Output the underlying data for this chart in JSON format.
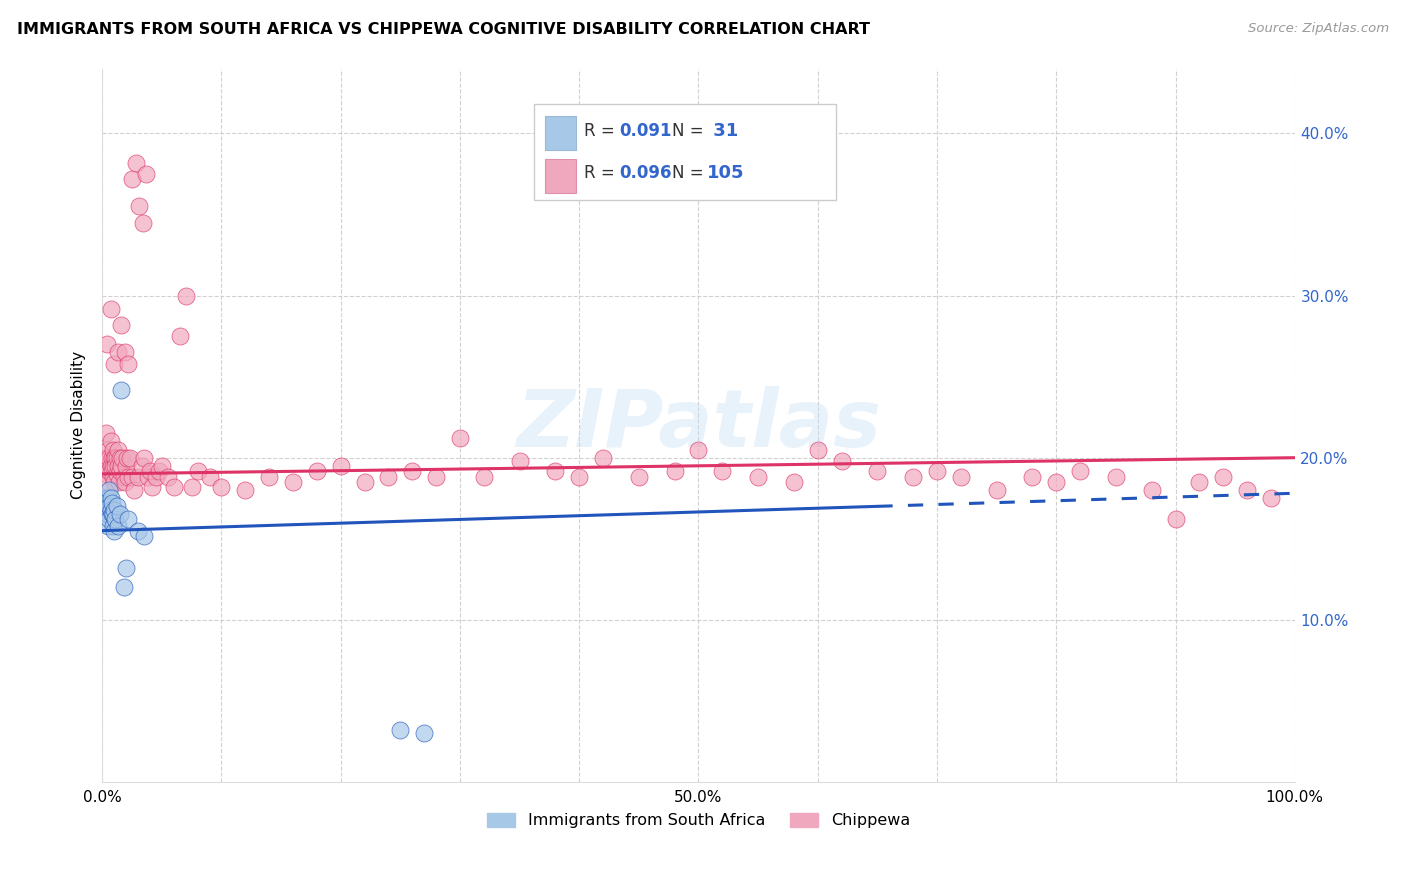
{
  "title": "IMMIGRANTS FROM SOUTH AFRICA VS CHIPPEWA COGNITIVE DISABILITY CORRELATION CHART",
  "source": "Source: ZipAtlas.com",
  "ylabel": "Cognitive Disability",
  "legend_label_blue": "Immigrants from South Africa",
  "legend_label_pink": "Chippewa",
  "r_blue": "0.091",
  "n_blue": " 31",
  "r_pink": "0.096",
  "n_pink": "105",
  "xlim": [
    0.0,
    1.0
  ],
  "ylim": [
    0.0,
    0.44
  ],
  "color_blue": "#a8c8e8",
  "color_pink": "#f0a8be",
  "line_blue": "#2255bb",
  "line_pink": "#dd3366",
  "text_color_dark": "#333333",
  "text_color_blue": "#3366cc",
  "grid_color": "#cccccc",
  "blue_x": [
    0.002,
    0.003,
    0.003,
    0.004,
    0.004,
    0.005,
    0.005,
    0.005,
    0.006,
    0.006,
    0.006,
    0.007,
    0.007,
    0.008,
    0.008,
    0.009,
    0.009,
    0.01,
    0.01,
    0.011,
    0.012,
    0.013,
    0.015,
    0.016,
    0.018,
    0.02,
    0.022,
    0.03,
    0.035,
    0.25,
    0.27
  ],
  "blue_y": [
    0.172,
    0.168,
    0.175,
    0.165,
    0.17,
    0.158,
    0.165,
    0.175,
    0.17,
    0.18,
    0.162,
    0.175,
    0.168,
    0.165,
    0.172,
    0.158,
    0.165,
    0.155,
    0.168,
    0.162,
    0.17,
    0.158,
    0.165,
    0.242,
    0.12,
    0.132,
    0.162,
    0.155,
    0.152,
    0.032,
    0.03
  ],
  "pink_x": [
    0.002,
    0.003,
    0.003,
    0.004,
    0.004,
    0.005,
    0.005,
    0.005,
    0.006,
    0.006,
    0.007,
    0.007,
    0.008,
    0.008,
    0.009,
    0.009,
    0.009,
    0.01,
    0.01,
    0.011,
    0.011,
    0.012,
    0.012,
    0.013,
    0.013,
    0.014,
    0.015,
    0.015,
    0.016,
    0.017,
    0.018,
    0.019,
    0.02,
    0.021,
    0.022,
    0.023,
    0.025,
    0.027,
    0.03,
    0.033,
    0.035,
    0.038,
    0.04,
    0.042,
    0.045,
    0.048,
    0.05,
    0.055,
    0.06,
    0.065,
    0.07,
    0.075,
    0.08,
    0.09,
    0.1,
    0.12,
    0.14,
    0.16,
    0.18,
    0.2,
    0.22,
    0.24,
    0.26,
    0.28,
    0.3,
    0.32,
    0.35,
    0.38,
    0.4,
    0.42,
    0.45,
    0.48,
    0.5,
    0.52,
    0.55,
    0.58,
    0.6,
    0.62,
    0.65,
    0.68,
    0.7,
    0.72,
    0.75,
    0.78,
    0.8,
    0.82,
    0.85,
    0.88,
    0.9,
    0.92,
    0.94,
    0.96,
    0.98,
    0.004,
    0.007,
    0.01,
    0.013,
    0.016,
    0.019,
    0.022,
    0.025,
    0.028,
    0.031,
    0.034,
    0.037
  ],
  "pink_y": [
    0.2,
    0.215,
    0.195,
    0.19,
    0.2,
    0.185,
    0.195,
    0.205,
    0.192,
    0.2,
    0.195,
    0.21,
    0.192,
    0.2,
    0.188,
    0.195,
    0.205,
    0.2,
    0.185,
    0.2,
    0.195,
    0.19,
    0.2,
    0.195,
    0.205,
    0.185,
    0.192,
    0.2,
    0.195,
    0.2,
    0.188,
    0.185,
    0.195,
    0.2,
    0.188,
    0.2,
    0.188,
    0.18,
    0.188,
    0.195,
    0.2,
    0.188,
    0.192,
    0.182,
    0.188,
    0.192,
    0.195,
    0.188,
    0.182,
    0.275,
    0.3,
    0.182,
    0.192,
    0.188,
    0.182,
    0.18,
    0.188,
    0.185,
    0.192,
    0.195,
    0.185,
    0.188,
    0.192,
    0.188,
    0.212,
    0.188,
    0.198,
    0.192,
    0.188,
    0.2,
    0.188,
    0.192,
    0.205,
    0.192,
    0.188,
    0.185,
    0.205,
    0.198,
    0.192,
    0.188,
    0.192,
    0.188,
    0.18,
    0.188,
    0.185,
    0.192,
    0.188,
    0.18,
    0.162,
    0.185,
    0.188,
    0.18,
    0.175,
    0.27,
    0.292,
    0.258,
    0.265,
    0.282,
    0.265,
    0.258,
    0.372,
    0.382,
    0.355,
    0.345,
    0.375
  ]
}
